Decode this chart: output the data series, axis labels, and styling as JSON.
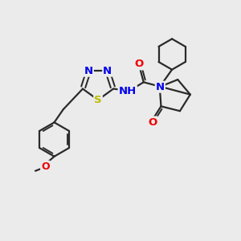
{
  "bg_color": "#ebebeb",
  "bond_color": "#2a2a2a",
  "bond_width": 1.6,
  "atom_colors": {
    "N": "#0000ee",
    "O": "#ee0000",
    "S": "#bbbb00",
    "C": "#2a2a2a"
  },
  "xlim": [
    0,
    10
  ],
  "ylim": [
    0,
    10
  ]
}
